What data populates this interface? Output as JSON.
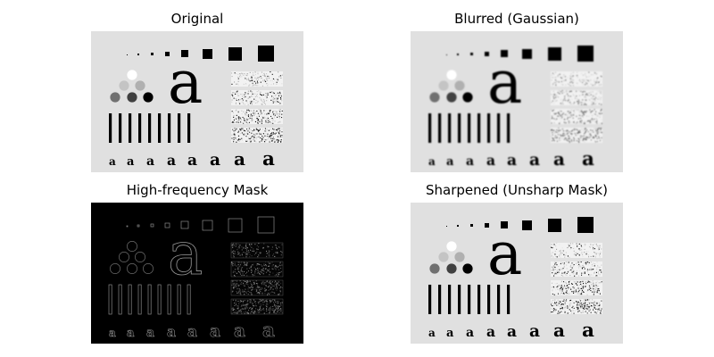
{
  "panels": [
    {
      "title": "Original",
      "variant": "original"
    },
    {
      "title": "Blurred (Gaussian)",
      "variant": "blurred"
    },
    {
      "title": "High-frequency Mask",
      "variant": "mask"
    },
    {
      "title": "Sharpened (Unsharp Mask)",
      "variant": "sharpened"
    }
  ],
  "test_pattern": {
    "large_glyph": "a",
    "small_glyph": "a",
    "background": "#e0e0e0",
    "ink": "#000000"
  }
}
